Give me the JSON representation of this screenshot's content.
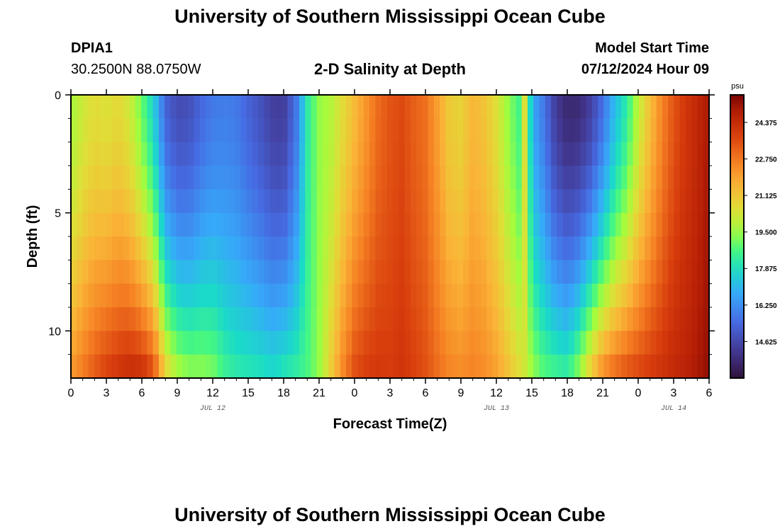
{
  "header": {
    "title": "University of Southern Mississippi Ocean Cube",
    "station": "DPIA1",
    "coords": "30.2500N  88.0750W",
    "subtitle": "2-D Salinity at Depth",
    "model_start_label": "Model Start Time",
    "model_start_value": "07/12/2024 Hour 09"
  },
  "footer": {
    "title": "University of Southern Mississippi Ocean Cube"
  },
  "colors": {
    "frame": "#000000"
  },
  "chart_data": {
    "type": "heatmap",
    "title": "2-D Salinity at Depth",
    "xlabel": "Forecast Time(Z)",
    "ylabel": "Depth (ft)",
    "x_range_hours": [
      0,
      54
    ],
    "y_range_ft": [
      0,
      12
    ],
    "x_ticks": [
      {
        "h": 0,
        "label": "0"
      },
      {
        "h": 3,
        "label": "3"
      },
      {
        "h": 6,
        "label": "6"
      },
      {
        "h": 9,
        "label": "9"
      },
      {
        "h": 12,
        "label": "12"
      },
      {
        "h": 15,
        "label": "15"
      },
      {
        "h": 18,
        "label": "18"
      },
      {
        "h": 21,
        "label": "21"
      },
      {
        "h": 24,
        "label": "0"
      },
      {
        "h": 27,
        "label": "3"
      },
      {
        "h": 30,
        "label": "6"
      },
      {
        "h": 33,
        "label": "9"
      },
      {
        "h": 36,
        "label": "12"
      },
      {
        "h": 39,
        "label": "15"
      },
      {
        "h": 42,
        "label": "18"
      },
      {
        "h": 45,
        "label": "21"
      },
      {
        "h": 48,
        "label": "0"
      },
      {
        "h": 51,
        "label": "3"
      },
      {
        "h": 54,
        "label": "6"
      }
    ],
    "y_ticks": [
      {
        "d": 0,
        "label": "0"
      },
      {
        "d": 5,
        "label": "5"
      },
      {
        "d": 10,
        "label": "10"
      }
    ],
    "date_labels": [
      {
        "h": 12,
        "label": "JUL 12"
      },
      {
        "h": 36,
        "label": "JUL 13"
      },
      {
        "h": 51,
        "label": "JUL 14"
      }
    ],
    "colorbar": {
      "unit": "psu",
      "min": 13.0,
      "max": 25.6,
      "ticks": [
        {
          "v": 24.375,
          "label": "24.375"
        },
        {
          "v": 22.75,
          "label": "22.750"
        },
        {
          "v": 21.125,
          "label": "21.125"
        },
        {
          "v": 19.5,
          "label": "19.500"
        },
        {
          "v": 17.875,
          "label": "17.875"
        },
        {
          "v": 16.25,
          "label": "16.250"
        },
        {
          "v": 14.625,
          "label": "14.625"
        }
      ]
    },
    "columns_count": 109,
    "rows_count": 12,
    "surface_salinity_profile": [
      [
        0,
        19.6
      ],
      [
        1,
        20.2
      ],
      [
        2,
        20.6
      ],
      [
        3,
        20.4
      ],
      [
        4,
        20.7
      ],
      [
        5,
        20.2
      ],
      [
        6,
        19.0
      ],
      [
        7,
        17.6
      ],
      [
        8,
        15.3
      ],
      [
        9,
        14.7
      ],
      [
        10,
        14.8
      ],
      [
        11,
        15.4
      ],
      [
        12,
        15.8
      ],
      [
        13,
        15.9
      ],
      [
        14,
        15.8
      ],
      [
        15,
        15.3
      ],
      [
        16,
        14.9
      ],
      [
        17,
        14.4
      ],
      [
        18,
        14.3
      ],
      [
        19,
        15.6
      ],
      [
        20,
        18.2
      ],
      [
        21,
        19.4
      ],
      [
        22,
        19.8
      ],
      [
        23,
        20.6
      ],
      [
        24,
        21.4
      ],
      [
        25,
        22.2
      ],
      [
        26,
        23.0
      ],
      [
        27,
        23.4
      ],
      [
        28,
        23.6
      ],
      [
        29,
        23.2
      ],
      [
        30,
        22.9
      ],
      [
        31,
        22.0
      ],
      [
        32,
        21.0
      ],
      [
        33,
        20.8
      ],
      [
        34,
        21.5
      ],
      [
        35,
        21.2
      ],
      [
        36,
        20.5
      ],
      [
        37,
        19.4
      ],
      [
        38,
        18.5
      ],
      [
        38.5,
        21.0
      ],
      [
        39,
        16.8
      ],
      [
        40,
        15.8
      ],
      [
        41,
        14.3
      ],
      [
        42,
        13.7
      ],
      [
        43,
        13.8
      ],
      [
        44,
        14.4
      ],
      [
        45,
        15.6
      ],
      [
        46,
        17.1
      ],
      [
        47,
        18.2
      ],
      [
        48,
        19.9
      ],
      [
        49,
        21.3
      ],
      [
        50,
        22.5
      ],
      [
        51,
        23.4
      ],
      [
        52,
        24.0
      ],
      [
        53,
        24.5
      ],
      [
        54,
        25.0
      ]
    ],
    "bottom_salinity_profile": [
      [
        0,
        22.2
      ],
      [
        1,
        22.8
      ],
      [
        2,
        23.4
      ],
      [
        3,
        23.9
      ],
      [
        4,
        24.2
      ],
      [
        5,
        24.5
      ],
      [
        6,
        24.4
      ],
      [
        7,
        23.7
      ],
      [
        8,
        21.0
      ],
      [
        9,
        19.9
      ],
      [
        10,
        19.5
      ],
      [
        11,
        19.5
      ],
      [
        12,
        19.3
      ],
      [
        13,
        18.6
      ],
      [
        14,
        18.3
      ],
      [
        15,
        18.2
      ],
      [
        16,
        18.1
      ],
      [
        17,
        17.9
      ],
      [
        18,
        18.2
      ],
      [
        19,
        18.4
      ],
      [
        20,
        18.7
      ],
      [
        21,
        19.4
      ],
      [
        22,
        21.0
      ],
      [
        23,
        22.5
      ],
      [
        24,
        23.6
      ],
      [
        25,
        23.9
      ],
      [
        26,
        24.0
      ],
      [
        27,
        23.9
      ],
      [
        28,
        24.1
      ],
      [
        29,
        23.8
      ],
      [
        30,
        23.5
      ],
      [
        31,
        23.0
      ],
      [
        32,
        22.6
      ],
      [
        33,
        22.4
      ],
      [
        34,
        22.6
      ],
      [
        35,
        22.4
      ],
      [
        36,
        22.0
      ],
      [
        37,
        21.3
      ],
      [
        38,
        20.6
      ],
      [
        39,
        19.6
      ],
      [
        40,
        18.9
      ],
      [
        41,
        18.7
      ],
      [
        42,
        18.5
      ],
      [
        43,
        19.6
      ],
      [
        44,
        21.3
      ],
      [
        45,
        22.6
      ],
      [
        46,
        23.2
      ],
      [
        47,
        23.6
      ],
      [
        48,
        23.8
      ],
      [
        49,
        24.0
      ],
      [
        50,
        24.2
      ],
      [
        51,
        24.5
      ],
      [
        52,
        24.7
      ],
      [
        53,
        25.0
      ],
      [
        54,
        25.3
      ]
    ]
  }
}
